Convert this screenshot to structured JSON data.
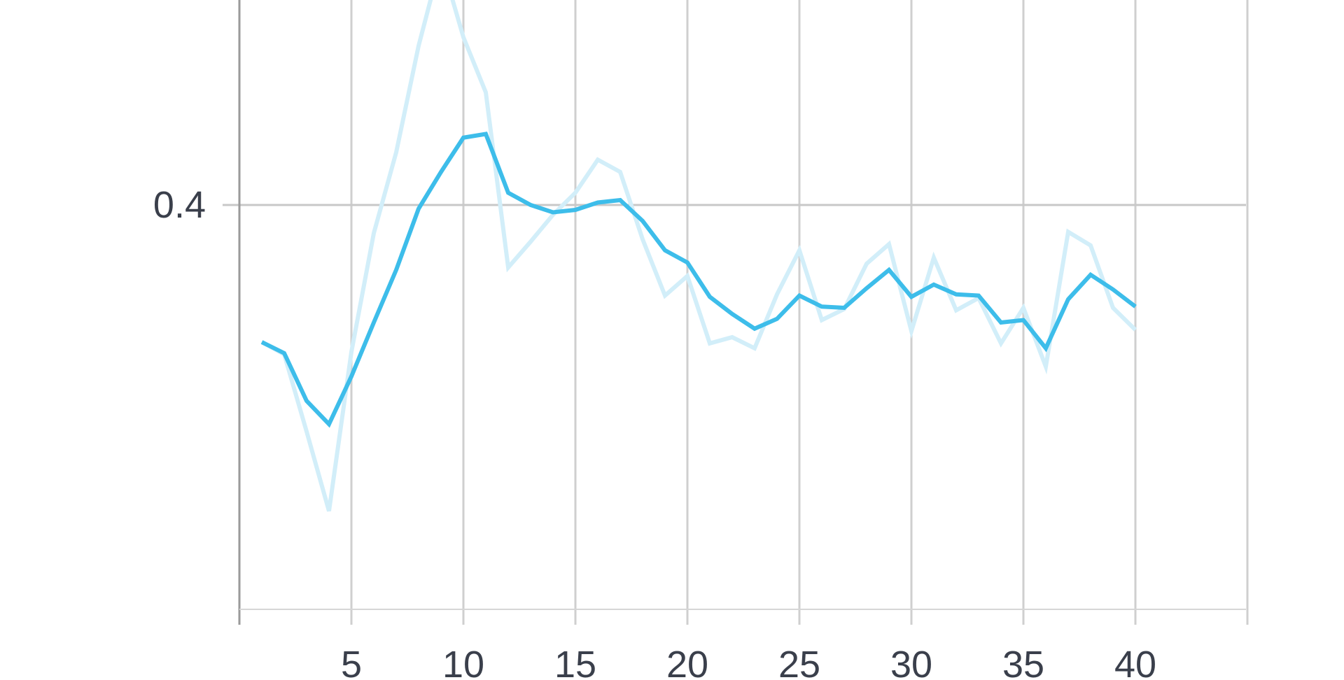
{
  "chart_data": {
    "type": "line",
    "title": "",
    "xlabel": "",
    "ylabel": "",
    "x_ticks": [
      5,
      10,
      15,
      20,
      25,
      30,
      35,
      40
    ],
    "x_tick_labels": [
      "5",
      "10",
      "15",
      "20",
      "25",
      "30",
      "35",
      "40"
    ],
    "y_ticks": [
      0.4
    ],
    "y_tick_labels": [
      "0.4"
    ],
    "xlim": [
      0,
      45
    ],
    "ylim_visible": [
      0.22,
      0.5
    ],
    "grid": true,
    "legend": "none",
    "series": [
      {
        "role": "raw",
        "color": "#d2eef9",
        "x": [
          1,
          2,
          3,
          4,
          5,
          6,
          7,
          8,
          9,
          10,
          11,
          12,
          13,
          14,
          15,
          16,
          17,
          18,
          19,
          20,
          21,
          22,
          23,
          24,
          25,
          26,
          27,
          28,
          29,
          30,
          31,
          32,
          33,
          34,
          35,
          36,
          37,
          38,
          39,
          40
        ],
        "y": [
          0.288,
          0.278,
          0.215,
          0.15,
          0.28,
          0.377,
          0.443,
          0.53,
          0.6,
          0.537,
          0.492,
          0.349,
          0.37,
          0.392,
          0.41,
          0.437,
          0.427,
          0.372,
          0.326,
          0.342,
          0.287,
          0.292,
          0.283,
          0.327,
          0.363,
          0.306,
          0.315,
          0.352,
          0.368,
          0.297,
          0.357,
          0.314,
          0.324,
          0.287,
          0.316,
          0.268,
          0.378,
          0.367,
          0.316,
          0.298
        ]
      },
      {
        "role": "smoothed",
        "color": "#3dbdea",
        "x": [
          1,
          2,
          3,
          4,
          5,
          6,
          7,
          8,
          9,
          10,
          11,
          12,
          13,
          14,
          15,
          16,
          17,
          18,
          19,
          20,
          21,
          22,
          23,
          24,
          25,
          26,
          27,
          28,
          29,
          30,
          31,
          32,
          33,
          34,
          35,
          36,
          37,
          38,
          39,
          40
        ],
        "y": [
          0.288,
          0.279,
          0.24,
          0.221,
          0.26,
          0.304,
          0.347,
          0.397,
          0.427,
          0.455,
          0.458,
          0.41,
          0.4,
          0.394,
          0.396,
          0.402,
          0.404,
          0.387,
          0.363,
          0.353,
          0.325,
          0.311,
          0.299,
          0.307,
          0.326,
          0.317,
          0.316,
          0.332,
          0.347,
          0.325,
          0.335,
          0.327,
          0.326,
          0.304,
          0.306,
          0.283,
          0.323,
          0.343,
          0.331,
          0.317
        ]
      }
    ]
  }
}
